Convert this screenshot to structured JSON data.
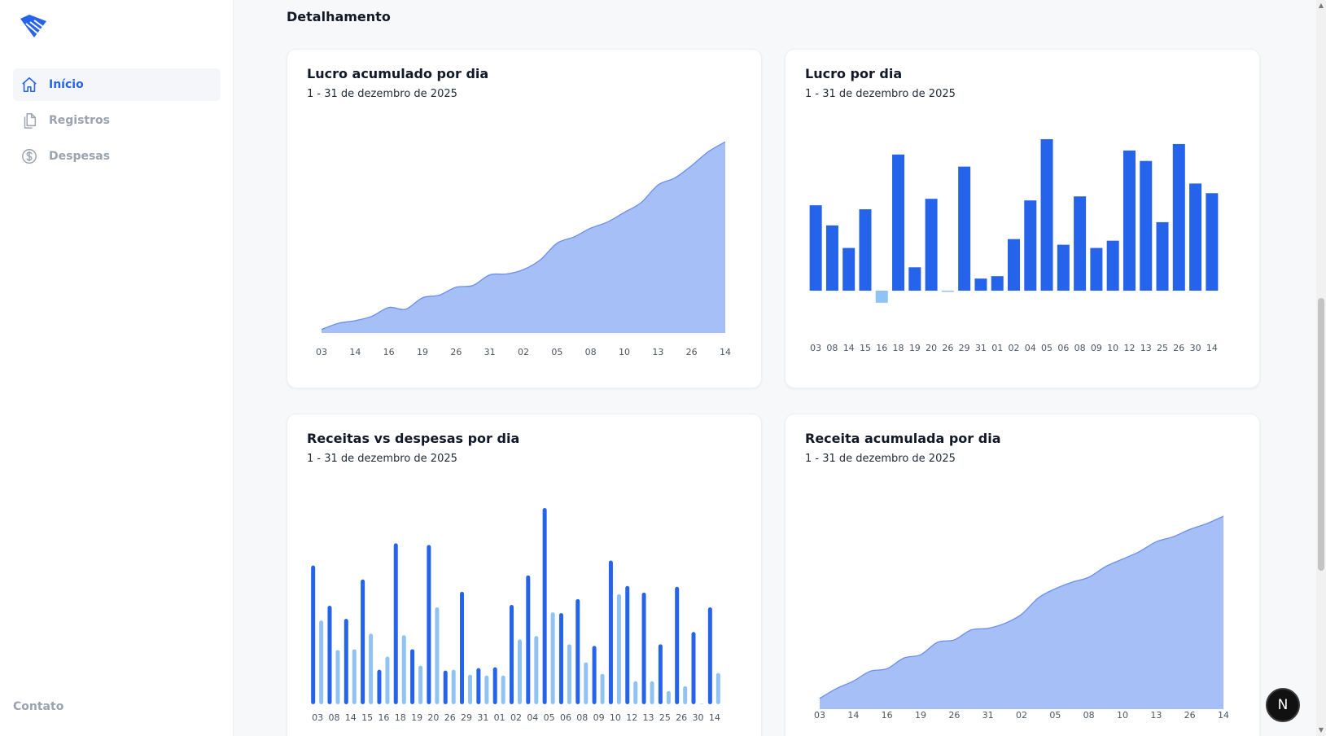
{
  "sidebar": {
    "items": [
      {
        "label": "Início",
        "icon": "home-icon",
        "active": true
      },
      {
        "label": "Registros",
        "icon": "files-icon",
        "active": false
      },
      {
        "label": "Despesas",
        "icon": "dollar-icon",
        "active": false
      }
    ],
    "footer_link": "Contato"
  },
  "main": {
    "section_title": "Detalhamento"
  },
  "colors": {
    "primary": "#2563eb",
    "light": "#90c3f4",
    "area_fill": "#a6bff6",
    "area_stroke": "#6b8ff0"
  },
  "charts": [
    {
      "title": "Lucro acumulado por dia",
      "subtitle": "1 - 31 de dezembro de 2025"
    },
    {
      "title": "Lucro por dia",
      "subtitle": "1 - 31 de dezembro de 2025"
    },
    {
      "title": "Receitas vs despesas por dia",
      "subtitle": "1 - 31 de dezembro de 2025"
    },
    {
      "title": "Receita acumulada por dia",
      "subtitle": "1 - 31 de dezembro de 2025"
    }
  ],
  "chart_data": [
    {
      "type": "area",
      "x": [
        "03",
        "08",
        "14",
        "15",
        "16",
        "18",
        "19",
        "20",
        "26",
        "29",
        "31",
        "01",
        "02",
        "04",
        "05",
        "06",
        "08",
        "09",
        "10",
        "12",
        "13",
        "25",
        "26",
        "30",
        "14"
      ],
      "tick_labels": [
        "03",
        "14",
        "16",
        "19",
        "26",
        "31",
        "02",
        "05",
        "08",
        "10",
        "13",
        "26",
        "14"
      ],
      "values": [
        4,
        11,
        14,
        19,
        29,
        27,
        40,
        43,
        52,
        54,
        66,
        67,
        72,
        83,
        102,
        109,
        119,
        126,
        137,
        148,
        168,
        176,
        190,
        206,
        217
      ],
      "ylim": [
        0,
        220
      ],
      "grid": false
    },
    {
      "type": "bar",
      "categories": [
        "03",
        "08",
        "14",
        "15",
        "16",
        "18",
        "19",
        "20",
        "26",
        "29",
        "31",
        "01",
        "02",
        "04",
        "05",
        "06",
        "08",
        "09",
        "10",
        "12",
        "13",
        "25",
        "26",
        "30",
        "14"
      ],
      "values": [
        106,
        81,
        53,
        101,
        -15,
        169,
        29,
        114,
        -1,
        154,
        15,
        18,
        64,
        112,
        188,
        57,
        117,
        53,
        62,
        174,
        161,
        85,
        182,
        133,
        121
      ],
      "ylim": [
        -15,
        190
      ],
      "grid": false
    },
    {
      "type": "bar",
      "categories": [
        "03",
        "08",
        "14",
        "15",
        "16",
        "18",
        "19",
        "20",
        "26",
        "29",
        "31",
        "01",
        "02",
        "04",
        "05",
        "06",
        "08",
        "09",
        "10",
        "12",
        "13",
        "25",
        "26",
        "30",
        "14"
      ],
      "series": [
        {
          "values": [
            169,
            120,
            104,
            152,
            42,
            196,
            67,
            194,
            41,
            137,
            44,
            45,
            121,
            157,
            239,
            111,
            128,
            71,
            175,
            144,
            136,
            73,
            143,
            88,
            118
          ]
        },
        {
          "values": [
            102,
            66,
            67,
            86,
            58,
            84,
            47,
            118,
            42,
            36,
            35,
            35,
            79,
            83,
            112,
            73,
            51,
            37,
            134,
            28,
            28,
            16,
            22,
            0,
            38
          ]
        }
      ],
      "ylim": [
        0,
        240
      ],
      "grid": false
    },
    {
      "type": "area",
      "x": [
        "03",
        "08",
        "14",
        "15",
        "16",
        "18",
        "19",
        "20",
        "26",
        "29",
        "31",
        "01",
        "02",
        "04",
        "05",
        "06",
        "08",
        "09",
        "10",
        "12",
        "13",
        "25",
        "26",
        "30",
        "14"
      ],
      "tick_labels": [
        "03",
        "14",
        "16",
        "19",
        "26",
        "31",
        "02",
        "05",
        "08",
        "10",
        "13",
        "26",
        "14"
      ],
      "values": [
        13,
        25,
        34,
        46,
        49,
        62,
        66,
        81,
        84,
        96,
        98,
        104,
        115,
        135,
        146,
        154,
        160,
        173,
        182,
        191,
        203,
        209,
        218,
        225,
        234
      ],
      "ylim": [
        0,
        240
      ],
      "grid": false
    }
  ]
}
